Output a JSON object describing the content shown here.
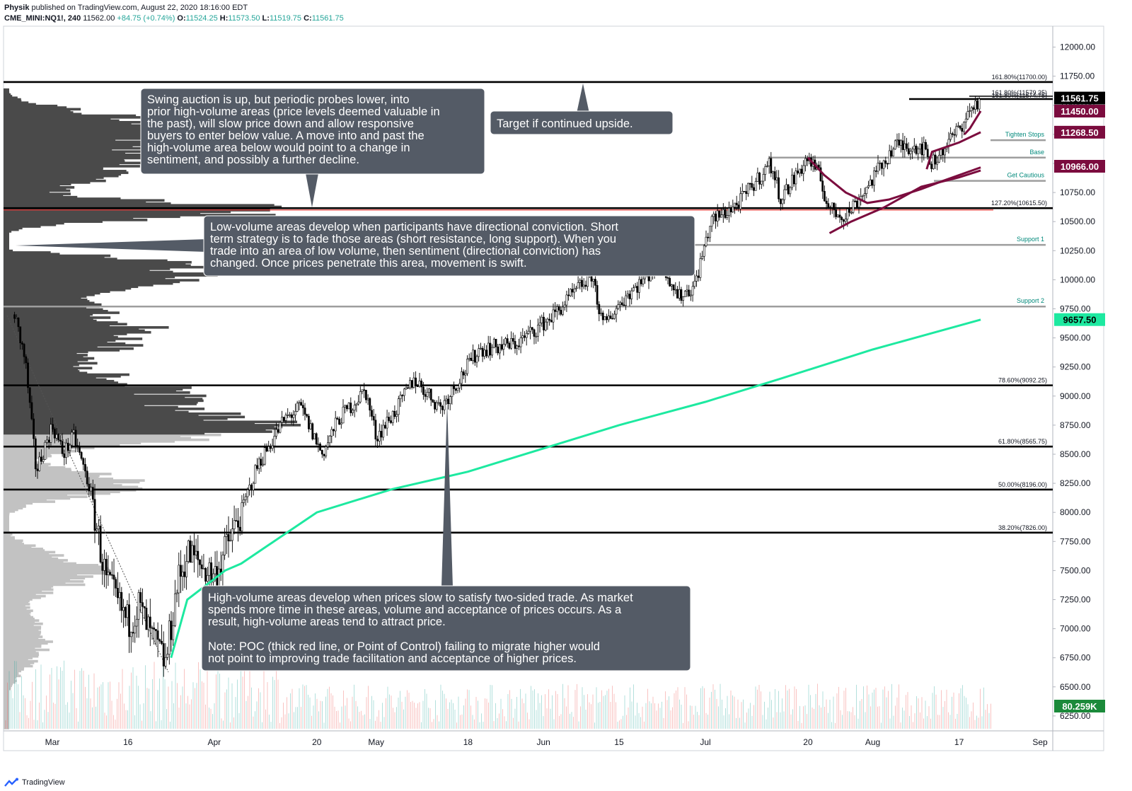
{
  "header": {
    "author": "Physik",
    "published": "published on TradingView.com, August 22, 2020 18:16:00 EDT",
    "symbol": "CME_MINI:NQ1!, 240",
    "last": "11562.00",
    "change": "+84.75 (+0.74%)",
    "o_label": "O:",
    "o_value": "11524.25",
    "h_label": "H:",
    "h_value": "11573.50",
    "l_label": "L:",
    "l_value": "11519.75",
    "c_label": "C:",
    "c_value": "11561.75"
  },
  "branding": {
    "label": "TradingView"
  },
  "colors": {
    "accent_green": "#26a69a",
    "ma_green": "#1de9a0",
    "maroon": "#7b0c3e",
    "box_bg": "#545b66",
    "label_green": "#00897b"
  },
  "chart_data": {
    "type": "candlestick",
    "symbol": "CME_MINI:NQ1!",
    "interval": "240",
    "ylim": [
      6100,
      12150
    ],
    "y_ticks": [
      "12000.00",
      "11750.00",
      "11500.00",
      "11250.00",
      "11000.00",
      "10750.00",
      "10500.00",
      "10250.00",
      "10000.00",
      "9750.00",
      "9500.00",
      "9250.00",
      "9000.00",
      "8750.00",
      "8500.00",
      "8250.00",
      "8000.00",
      "7750.00",
      "7500.00",
      "7250.00",
      "7000.00",
      "6750.00",
      "6500.00",
      "6250.00"
    ],
    "x_ticks": [
      "Mar",
      "16",
      "Apr",
      "20",
      "May",
      "18",
      "Jun",
      "15",
      "Jul",
      "20",
      "Aug",
      "17",
      "Sep"
    ],
    "close_path": [
      [
        "Feb 24",
        9700
      ],
      [
        "Feb 26",
        9300
      ],
      [
        "Feb 28",
        8350
      ],
      [
        "Mar 2",
        8750
      ],
      [
        "Mar 4",
        8500
      ],
      [
        "Mar 6",
        8650
      ],
      [
        "Mar 9",
        8200
      ],
      [
        "Mar 12",
        7400
      ],
      [
        "Mar 16",
        7050
      ],
      [
        "Mar 18",
        7200
      ],
      [
        "Mar 20",
        6950
      ],
      [
        "Mar 23",
        6700
      ],
      [
        "Mar 25",
        7350
      ],
      [
        "Mar 27",
        7650
      ],
      [
        "Apr 1",
        7450
      ],
      [
        "Apr 6",
        8000
      ],
      [
        "Apr 9",
        8400
      ],
      [
        "Apr 14",
        8800
      ],
      [
        "Apr 17",
        8900
      ],
      [
        "Apr 21",
        8500
      ],
      [
        "Apr 24",
        8800
      ],
      [
        "Apr 29",
        9050
      ],
      [
        "May 1",
        8650
      ],
      [
        "May 5",
        8900
      ],
      [
        "May 8",
        9150
      ],
      [
        "May 13",
        8900
      ],
      [
        "May 15",
        9050
      ],
      [
        "May 20",
        9400
      ],
      [
        "May 27",
        9450
      ],
      [
        "Jun 3",
        9700
      ],
      [
        "Jun 10",
        10050
      ],
      [
        "Jun 12",
        9600
      ],
      [
        "Jun 16",
        9850
      ],
      [
        "Jun 23",
        10150
      ],
      [
        "Jun 26",
        9850
      ],
      [
        "Jun 29",
        9950
      ],
      [
        "Jul 2",
        10500
      ],
      [
        "Jul 7",
        10650
      ],
      [
        "Jul 13",
        11000
      ],
      [
        "Jul 15",
        10700
      ],
      [
        "Jul 20",
        11050
      ],
      [
        "Jul 22",
        10900
      ],
      [
        "Jul 24",
        10600
      ],
      [
        "Jul 27",
        10550
      ],
      [
        "Jul 31",
        10800
      ],
      [
        "Aug 5",
        11150
      ],
      [
        "Aug 10",
        11150
      ],
      [
        "Aug 12",
        11000
      ],
      [
        "Aug 17",
        11300
      ],
      [
        "Aug 19",
        11450
      ],
      [
        "Aug 21",
        11562
      ]
    ],
    "moving_average": [
      [
        "Mar 24",
        6750
      ],
      [
        "Mar 27",
        7250
      ],
      [
        "Apr 3",
        7500
      ],
      [
        "Apr 6",
        7560
      ],
      [
        "Apr 20",
        8000
      ],
      [
        "May 4",
        8200
      ],
      [
        "May 18",
        8350
      ],
      [
        "Jun 1",
        8550
      ],
      [
        "Jun 15",
        8750
      ],
      [
        "Jul 1",
        8950
      ],
      [
        "Jul 15",
        9150
      ],
      [
        "Aug 1",
        9400
      ],
      [
        "Aug 21",
        9657
      ]
    ],
    "horizontal_levels": [
      {
        "label": "161.80%(11700.00)",
        "price": 11700
      },
      {
        "label": "127.20%(10615.50)",
        "price": 10615.5
      },
      {
        "label": "78.60%(9092.25)",
        "price": 9092.25
      },
      {
        "label": "61.80%(8565.75)",
        "price": 8565.75
      },
      {
        "label": "50.00%(8196.00)",
        "price": 8196
      },
      {
        "label": "38.20%(7826.00)",
        "price": 7826
      }
    ],
    "poc_price": 10600,
    "support_levels": [
      {
        "label": "Tighten Stops",
        "price": 11200
      },
      {
        "label": "Base",
        "price": 11050
      },
      {
        "label": "Get Cautious",
        "price": 10850
      },
      {
        "label": "Support 1",
        "price": 10300
      },
      {
        "label": "Support 2",
        "price": 9770
      }
    ],
    "top_levels": [
      "161.80%(11579.25)",
      "161.80%(11574.75)"
    ],
    "price_badges": [
      {
        "value": "11561.75",
        "price": 11562,
        "bg": "#000000"
      },
      {
        "value": "11450.00",
        "price": 11450,
        "bg": "#7b0c3e"
      },
      {
        "value": "11268.50",
        "price": 11268.5,
        "bg": "#7b0c3e"
      },
      {
        "value": "10966.00",
        "price": 10966,
        "bg": "#7b0c3e"
      },
      {
        "value": "9657.50",
        "price": 9657.5,
        "bg": "#1de9a0"
      }
    ],
    "volume_badge": "80.259K",
    "annotations": [
      {
        "id": "swing",
        "text": "Swing auction is up, but periodic probes lower, into prior high-volume areas (price levels deemed valuable in the past), will slow price down and allow responsive buyers to enter below value. A move into and past the high-volume area below would point to a change in sentiment, and possibly a further decline."
      },
      {
        "id": "target",
        "text": "Target if continued upside."
      },
      {
        "id": "lowvol",
        "text": "Low-volume areas develop when participants have directional conviction. Short term strategy is to fade those areas (short resistance, long support). When you trade into an area of low volume, then sentiment (directional conviction) has changed. Once prices penetrate this area, movement is swift."
      },
      {
        "id": "highvol",
        "text": "High-volume areas develop when prices slow to satisfy two-sided trade. As market spends more time in these areas, volume and acceptance of prices occurs. As a result, high-volume areas tend to attract price."
      },
      {
        "id": "note",
        "text": "Note: POC (thick red line, or Point of Control) failing to migrate higher would not point to improving trade facilitation and acceptance of higher prices."
      }
    ]
  }
}
